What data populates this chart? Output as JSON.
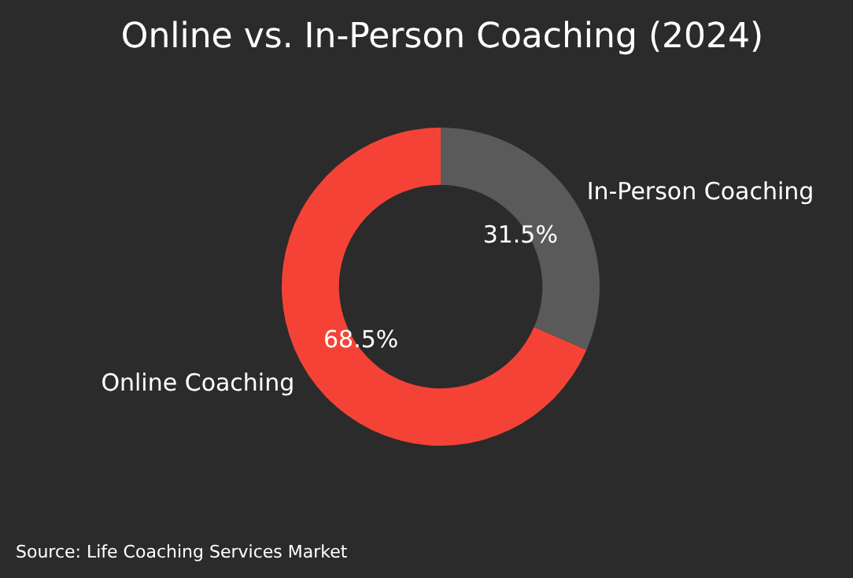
{
  "chart_data": {
    "type": "donut",
    "title": "Online vs. In-Person Coaching (2024)",
    "categories": [
      "Online Coaching",
      "In-Person Coaching"
    ],
    "values": [
      68.5,
      31.5
    ],
    "colors": [
      "#f44336",
      "#5a5a5a"
    ],
    "value_labels": [
      "68.5%",
      "31.5%"
    ],
    "annotations": [
      "Source: Life Coaching Services Market"
    ]
  }
}
